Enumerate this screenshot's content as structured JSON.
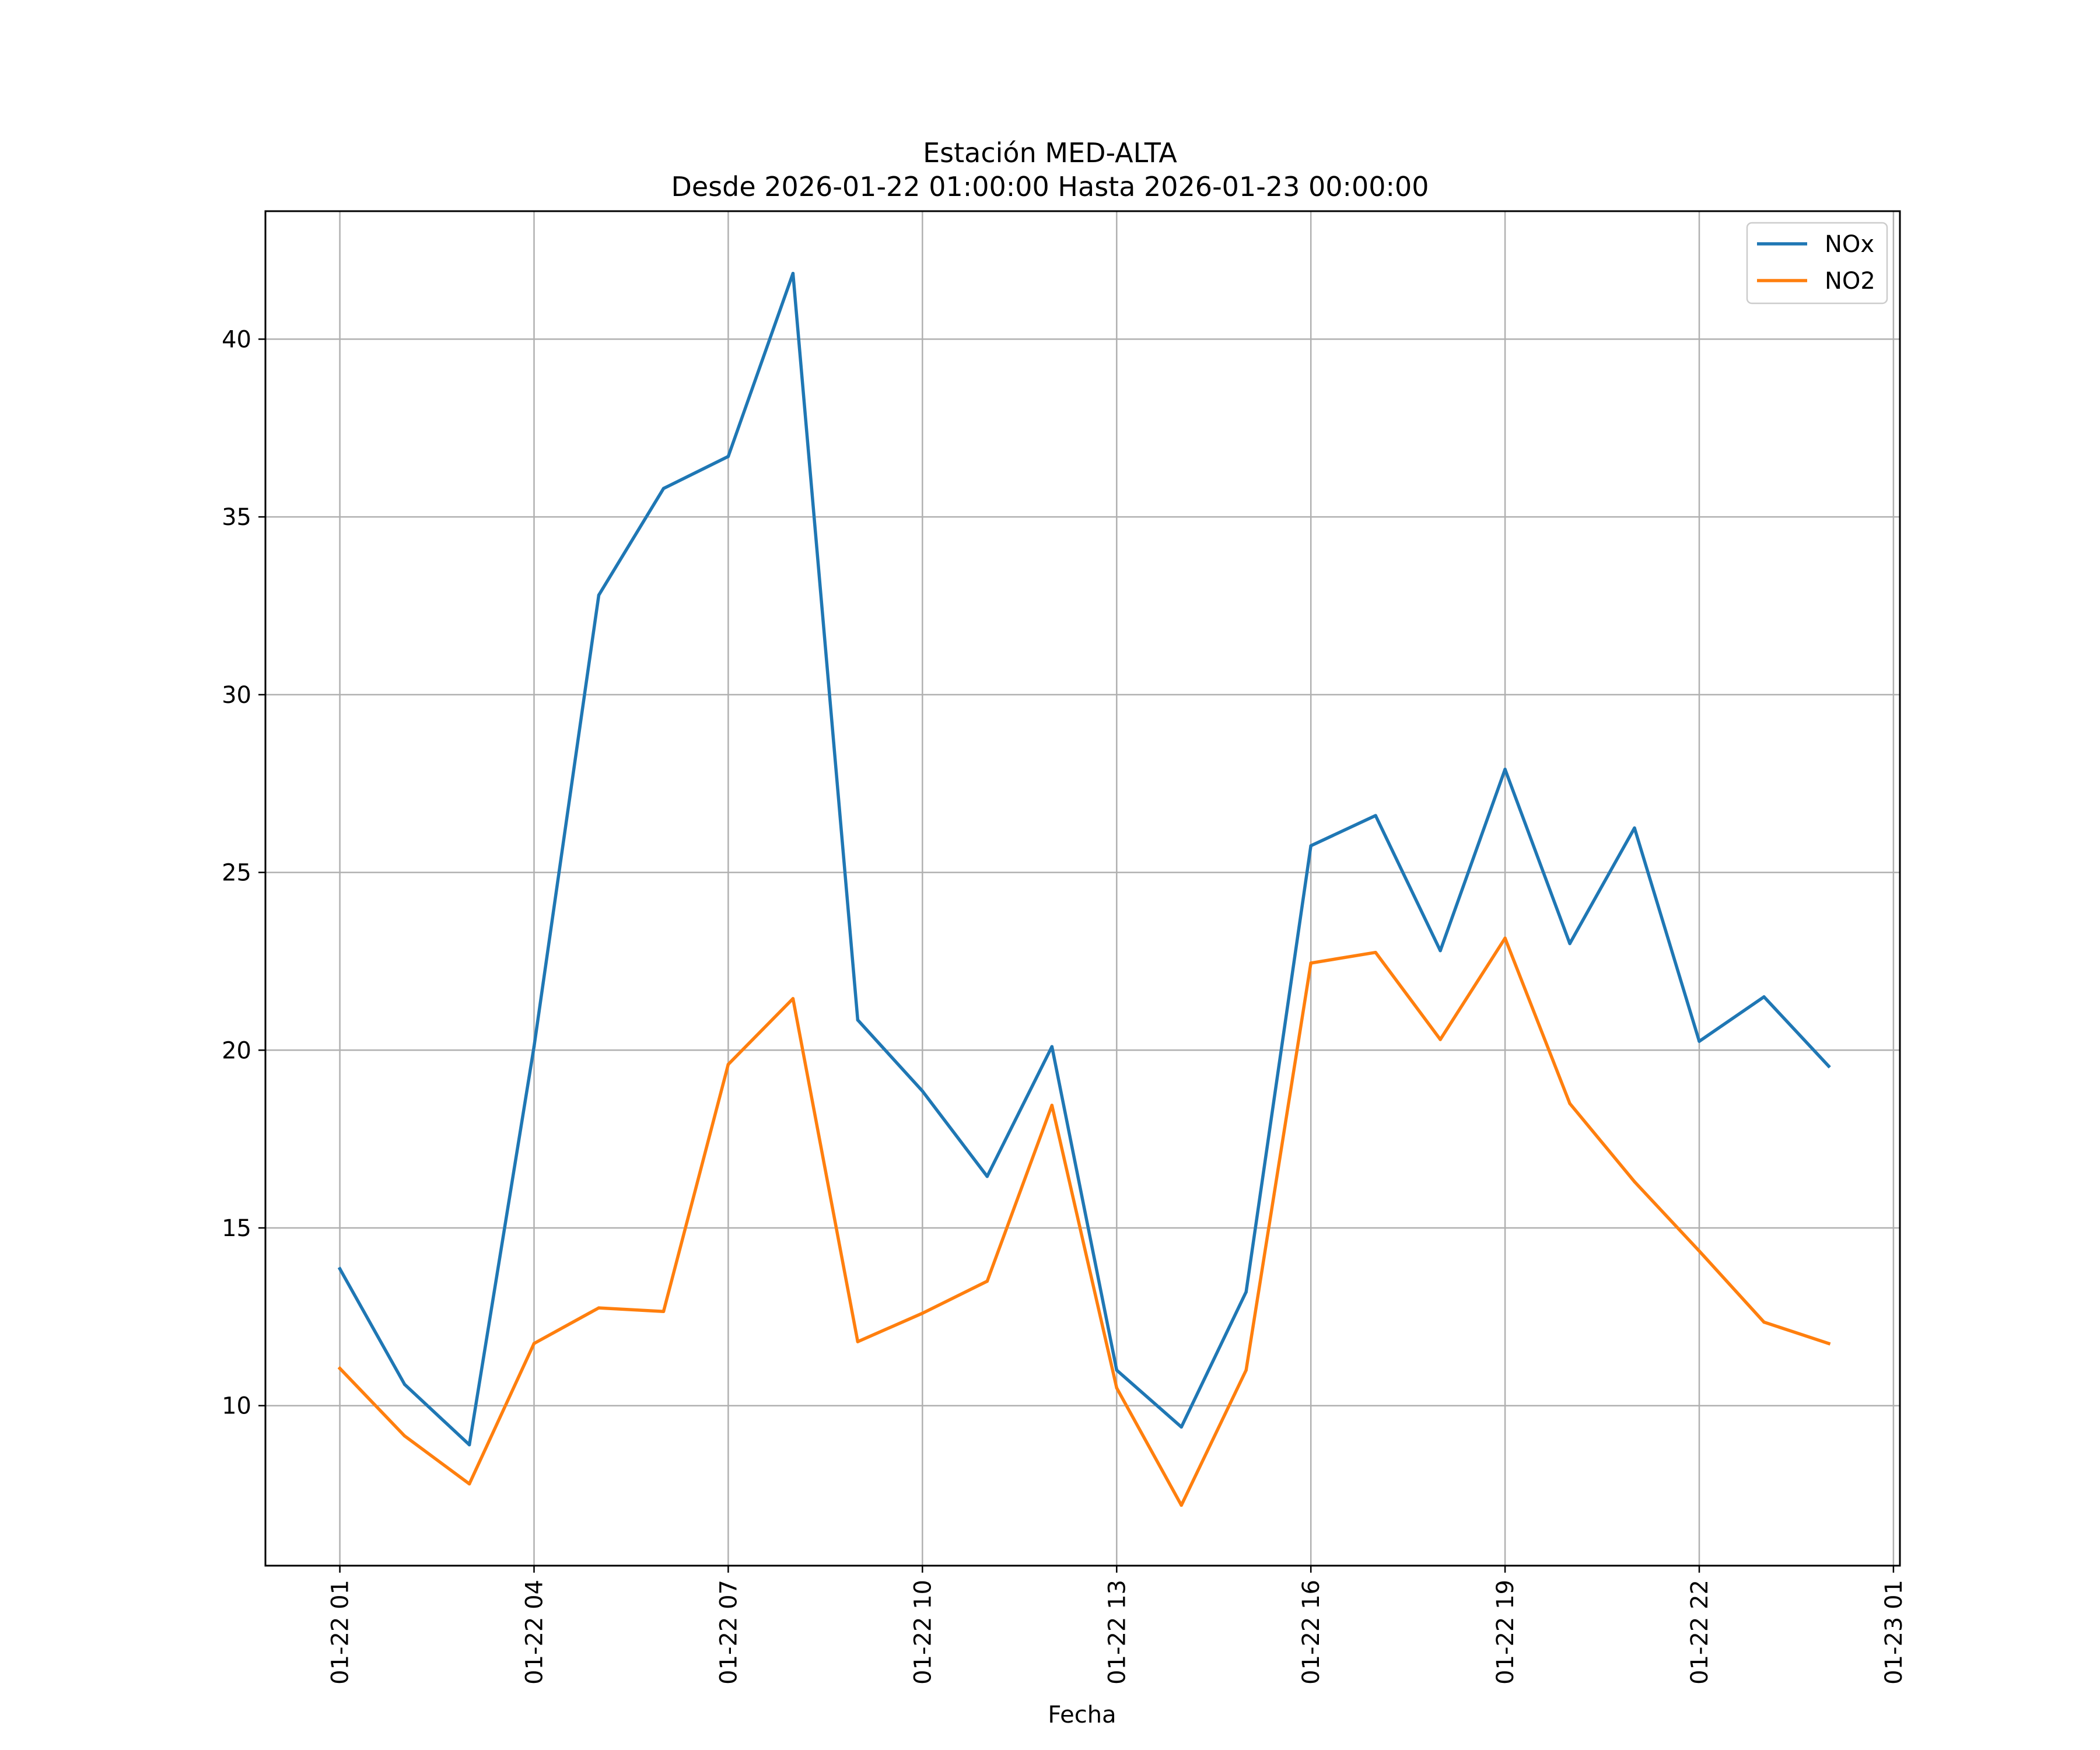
{
  "chart_data": {
    "type": "line",
    "title": "Estación MED-ALTA",
    "subtitle": "Desde 2026-01-22 01:00:00 Hasta 2026-01-23 00:00:00",
    "xlabel": "Fecha",
    "ylabel": "",
    "x_hours": [
      1,
      2,
      3,
      4,
      5,
      6,
      7,
      8,
      9,
      10,
      11,
      12,
      13,
      14,
      15,
      16,
      17,
      18,
      19,
      20,
      21,
      22,
      23,
      24
    ],
    "x_tick_hours": [
      1,
      4,
      7,
      10,
      13,
      16,
      19,
      22,
      25
    ],
    "x_tick_labels": [
      "01-22 01",
      "01-22 04",
      "01-22 07",
      "01-22 10",
      "01-22 13",
      "01-22 16",
      "01-22 19",
      "01-22 22",
      "01-23 01"
    ],
    "xlim": [
      -0.15,
      25.1
    ],
    "y_ticks": [
      10,
      15,
      20,
      25,
      30,
      35,
      40
    ],
    "ylim": [
      5.5,
      43.6
    ],
    "grid": true,
    "legend_position": "top-right",
    "series": [
      {
        "name": "NOx",
        "color": "#1f77b4",
        "values": [
          13.85,
          10.6,
          8.9,
          20.1,
          32.8,
          35.8,
          36.7,
          41.85,
          20.85,
          18.85,
          16.45,
          20.1,
          11.0,
          9.4,
          13.2,
          25.75,
          26.6,
          22.8,
          27.9,
          23.0,
          26.25,
          20.25,
          21.5,
          19.55
        ]
      },
      {
        "name": "NO2",
        "color": "#ff7f0e",
        "values": [
          11.05,
          9.15,
          7.8,
          11.75,
          12.75,
          12.65,
          19.6,
          21.45,
          11.8,
          12.6,
          13.5,
          18.45,
          10.5,
          7.2,
          11.0,
          22.45,
          22.75,
          20.3,
          23.15,
          18.5,
          16.3,
          14.35,
          12.35,
          11.75
        ]
      }
    ]
  }
}
